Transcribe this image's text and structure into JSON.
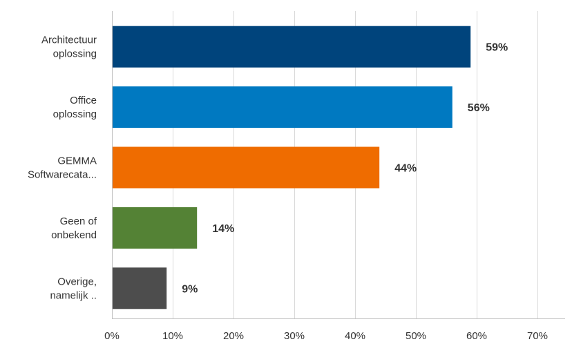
{
  "chart_data": {
    "type": "bar",
    "orientation": "horizontal",
    "categories": [
      [
        "Architectuur",
        "oplossing"
      ],
      [
        "Office",
        "oplossing"
      ],
      [
        "GEMMA",
        "Softwarecata..."
      ],
      [
        "Geen of",
        "onbekend"
      ],
      [
        "Overige,",
        "namelijk .."
      ]
    ],
    "values": [
      59,
      56,
      44,
      14,
      9
    ],
    "value_labels": [
      "59%",
      "56%",
      "44%",
      "14%",
      "9%"
    ],
    "colors": [
      "#00447c",
      "#0079c1",
      "#ef6c00",
      "#548235",
      "#4d4d4d"
    ],
    "xlim": [
      0,
      70
    ],
    "x_ticks": [
      0,
      10,
      20,
      30,
      40,
      50,
      60,
      70
    ],
    "x_tick_labels": [
      "0%",
      "10%",
      "20%",
      "30%",
      "40%",
      "50%",
      "60%",
      "70%"
    ],
    "grid": true,
    "title": "",
    "xlabel": "",
    "ylabel": ""
  }
}
